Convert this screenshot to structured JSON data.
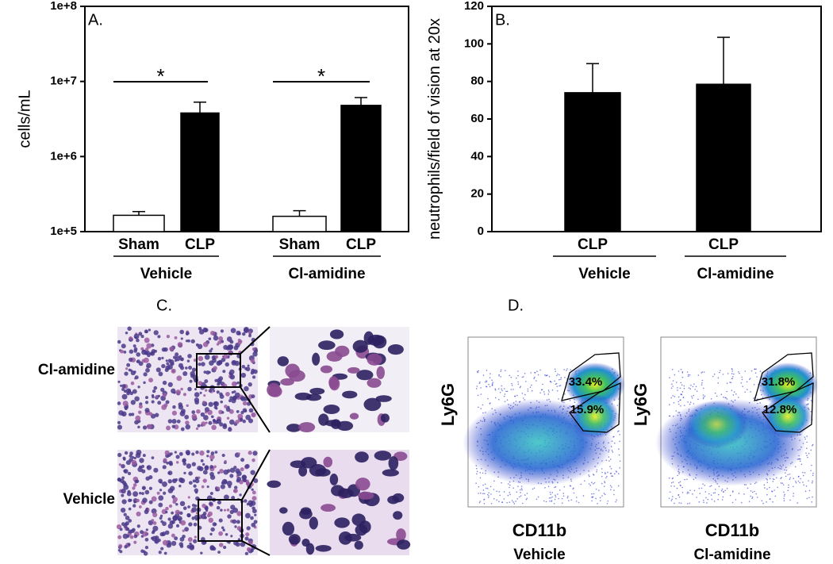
{
  "chart_data": [
    {
      "type": "bar",
      "panel": "A.",
      "ylabel": "cells/mL",
      "log_scale": true,
      "categories": [
        "Sham",
        "CLP",
        "Sham",
        "CLP"
      ],
      "groups": [
        "Vehicle",
        "Cl-amidine"
      ],
      "values": [
        165000,
        3800000,
        160000,
        4800000
      ],
      "errors": [
        20000,
        1500000,
        30000,
        1300000
      ],
      "colors": [
        "#ffffff",
        "#000000",
        "#ffffff",
        "#000000"
      ],
      "ylim": [
        100000,
        100000000
      ],
      "yticks": [
        {
          "value": 100000,
          "label": "1e+5"
        },
        {
          "value": 1000000,
          "label": "1e+6"
        },
        {
          "value": 10000000,
          "label": "1e+7"
        },
        {
          "value": 100000000,
          "label": "1e+8"
        }
      ],
      "annotations": [
        "*",
        "*"
      ]
    },
    {
      "type": "bar",
      "panel": "B.",
      "ylabel": "neutrophils/field of vision at 20x",
      "categories": [
        "CLP",
        "CLP"
      ],
      "groups": [
        "Vehicle",
        "Cl-amidine"
      ],
      "values": [
        74,
        78.5
      ],
      "errors": [
        15.5,
        25
      ],
      "color": "#000000",
      "ylim": [
        0,
        120
      ],
      "yticks": [
        0,
        20,
        40,
        60,
        80,
        100,
        120
      ]
    }
  ],
  "panel_c": {
    "label": "C.",
    "rows": [
      "Cl-amidine",
      "Vehicle"
    ]
  },
  "panel_d": {
    "label": "D.",
    "plots": [
      {
        "y_label": "Ly6G",
        "x_label": "CD11b",
        "condition": "Vehicle",
        "gates": [
          "33.4%",
          "15.9%"
        ]
      },
      {
        "y_label": "Ly6G",
        "x_label": "CD11b",
        "condition": "Cl-amidine",
        "gates": [
          "31.8%",
          "12.8%"
        ]
      }
    ]
  }
}
